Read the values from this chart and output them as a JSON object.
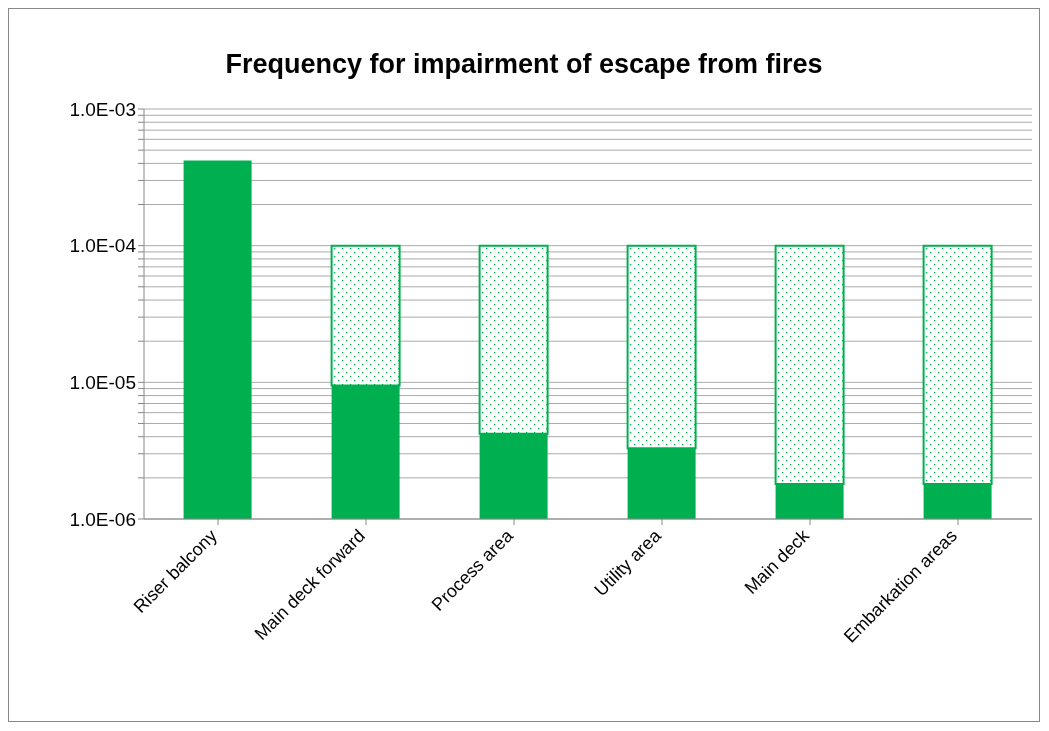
{
  "chart_data": {
    "type": "bar",
    "title": "Frequency for impairment of escape from fires",
    "categories": [
      "Riser balcony",
      "Main deck forward",
      "Process area",
      "Utility area",
      "Main deck",
      "Embarkation areas"
    ],
    "series": [
      {
        "color": "#00b050",
        "values": [
          0.00042,
          9.5e-06,
          4.2e-06,
          3.3e-06,
          1.8e-06,
          1.8e-06
        ]
      },
      {
        "color": "#00b050",
        "values": [
          null,
          9.05e-05,
          9.58e-05,
          9.67e-05,
          9.82e-05,
          9.82e-05
        ]
      }
    ],
    "stacked": true,
    "log": true,
    "ylim": [
      1e-06,
      0.001
    ],
    "yticks": [
      {
        "value": 1e-06,
        "label": "1.0E-06"
      },
      {
        "value": 2e-06,
        "label": null
      },
      {
        "value": 3e-06,
        "label": null
      },
      {
        "value": 4e-06,
        "label": null
      },
      {
        "value": 5e-06,
        "label": null
      },
      {
        "value": 6e-06,
        "label": null
      },
      {
        "value": 7e-06,
        "label": null
      },
      {
        "value": 8e-06,
        "label": null
      },
      {
        "value": 9e-06,
        "label": null
      },
      {
        "value": 1e-05,
        "label": "1.0E-05"
      },
      {
        "value": 2e-05,
        "label": null
      },
      {
        "value": 3e-05,
        "label": null
      },
      {
        "value": 4e-05,
        "label": null
      },
      {
        "value": 5e-05,
        "label": null
      },
      {
        "value": 6e-05,
        "label": null
      },
      {
        "value": 7e-05,
        "label": null
      },
      {
        "value": 8e-05,
        "label": null
      },
      {
        "value": 9e-05,
        "label": null
      },
      {
        "value": 0.0001,
        "label": "1.0E-04"
      },
      {
        "value": 0.0002,
        "label": null
      },
      {
        "value": 0.0003,
        "label": null
      },
      {
        "value": 0.0004,
        "label": null
      },
      {
        "value": 0.0005,
        "label": null
      },
      {
        "value": 0.0006,
        "label": null
      },
      {
        "value": 0.0007,
        "label": null
      },
      {
        "value": 0.0008,
        "label": null
      },
      {
        "value": 0.0009,
        "label": null
      },
      {
        "value": 0.001,
        "label": "1.0E-03"
      }
    ],
    "grid": "y",
    "legend": false
  }
}
